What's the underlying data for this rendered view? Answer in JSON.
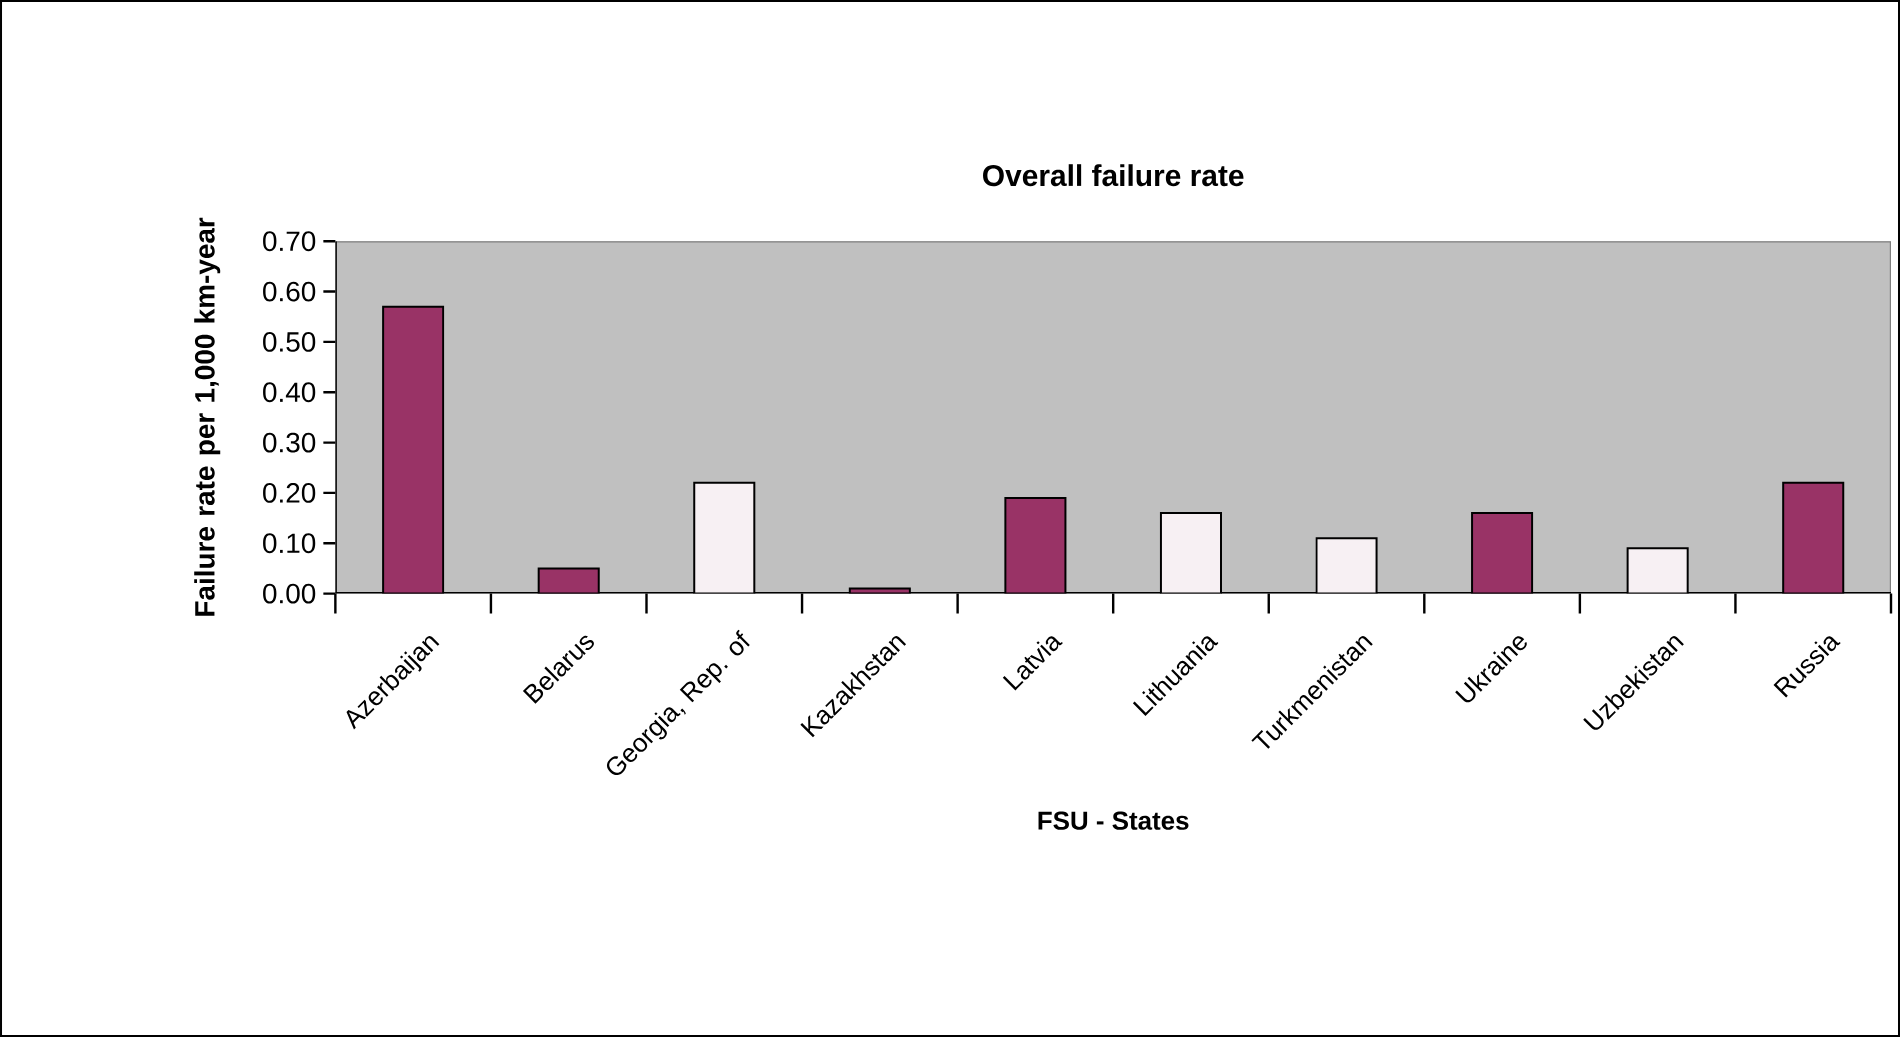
{
  "chart_data": {
    "type": "bar",
    "title": "Overall failure rate",
    "xlabel": "FSU - States",
    "ylabel": "Failure rate per 1,000 km-year",
    "categories": [
      "Azerbaijan",
      "Belarus",
      "Georgia, Rep. of",
      "Kazakhstan",
      "Latvia",
      "Lithuania",
      "Turkmenistan",
      "Ukraine",
      "Uzbekistan",
      "Russia"
    ],
    "values": [
      0.57,
      0.05,
      0.22,
      0.01,
      0.19,
      0.16,
      0.11,
      0.16,
      0.09,
      0.22
    ],
    "colors": [
      "#993366",
      "#993366",
      "#f7f0f3",
      "#993366",
      "#993366",
      "#f7f0f3",
      "#f7f0f3",
      "#993366",
      "#f7f0f3",
      "#993366"
    ],
    "ylim": [
      0,
      0.7
    ],
    "yticks": [
      {
        "value": 0,
        "label": "0.00"
      },
      {
        "value": 0.1,
        "label": "0.10"
      },
      {
        "value": 0.2,
        "label": "0.20"
      },
      {
        "value": 0.3,
        "label": "0.30"
      },
      {
        "value": 0.4,
        "label": "0.40"
      },
      {
        "value": 0.5,
        "label": "0.50"
      },
      {
        "value": 0.6,
        "label": "0.60"
      },
      {
        "value": 0.7,
        "label": "0.70"
      }
    ],
    "grid": false
  }
}
